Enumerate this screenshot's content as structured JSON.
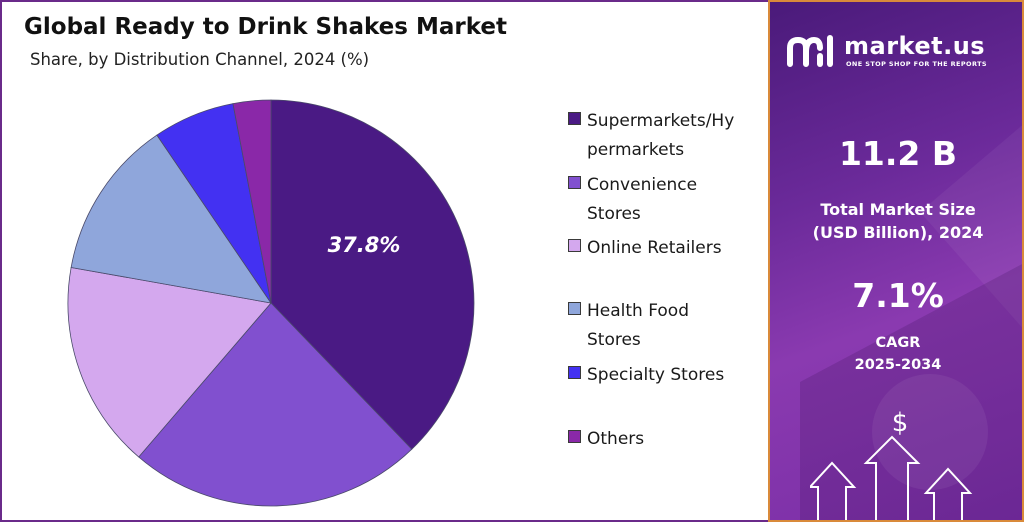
{
  "header": {
    "title": "Global Ready to Drink Shakes Market",
    "subtitle": "Share, by Distribution Channel, 2024 (%)"
  },
  "colors": {
    "supermarkets": "#4a1a84",
    "convenience": "#8150cf",
    "online": "#d4a8ee",
    "health_food": "#8fa6db",
    "specialty": "#4331f2",
    "others": "#8a28a8",
    "panel_border": "#d98a3a"
  },
  "chart_data": {
    "type": "pie",
    "title": "Global Ready to Drink Shakes Market",
    "subtitle": "Share, by Distribution Channel, 2024 (%)",
    "categories": [
      "Supermarkets/Hypermarkets",
      "Convenience Stores",
      "Online Retailers",
      "Health Food Stores",
      "Specialty Stores",
      "Others"
    ],
    "values": [
      37.8,
      23.5,
      16.5,
      12.7,
      6.5,
      3.0
    ],
    "data_labels": [
      "37.8%"
    ],
    "legend_position": "right",
    "start_angle_deg": 0,
    "direction": "clockwise"
  },
  "legend": {
    "items": [
      {
        "label_lines": [
          "Supermarkets/Hy",
          "permarkets"
        ],
        "color_key": "supermarkets"
      },
      {
        "label_lines": [
          "Convenience",
          "Stores"
        ],
        "color_key": "convenience"
      },
      {
        "label_lines": [
          "Online Retailers"
        ],
        "color_key": "online"
      },
      {
        "label_lines": [
          "Health Food",
          "Stores"
        ],
        "color_key": "health_food"
      },
      {
        "label_lines": [
          "Specialty Stores"
        ],
        "color_key": "specialty"
      },
      {
        "label_lines": [
          "Others"
        ],
        "color_key": "others"
      }
    ]
  },
  "sidebar": {
    "logo_text": "market.us",
    "logo_tagline": "ONE STOP SHOP FOR THE REPORTS",
    "market_size_value": "11.2 B",
    "market_size_label_1": "Total Market Size",
    "market_size_label_2": "(USD Billion), 2024",
    "cagr_value": "7.1%",
    "cagr_label_1": "CAGR",
    "cagr_label_2": "2025-2034",
    "dollar_symbol": "$"
  }
}
